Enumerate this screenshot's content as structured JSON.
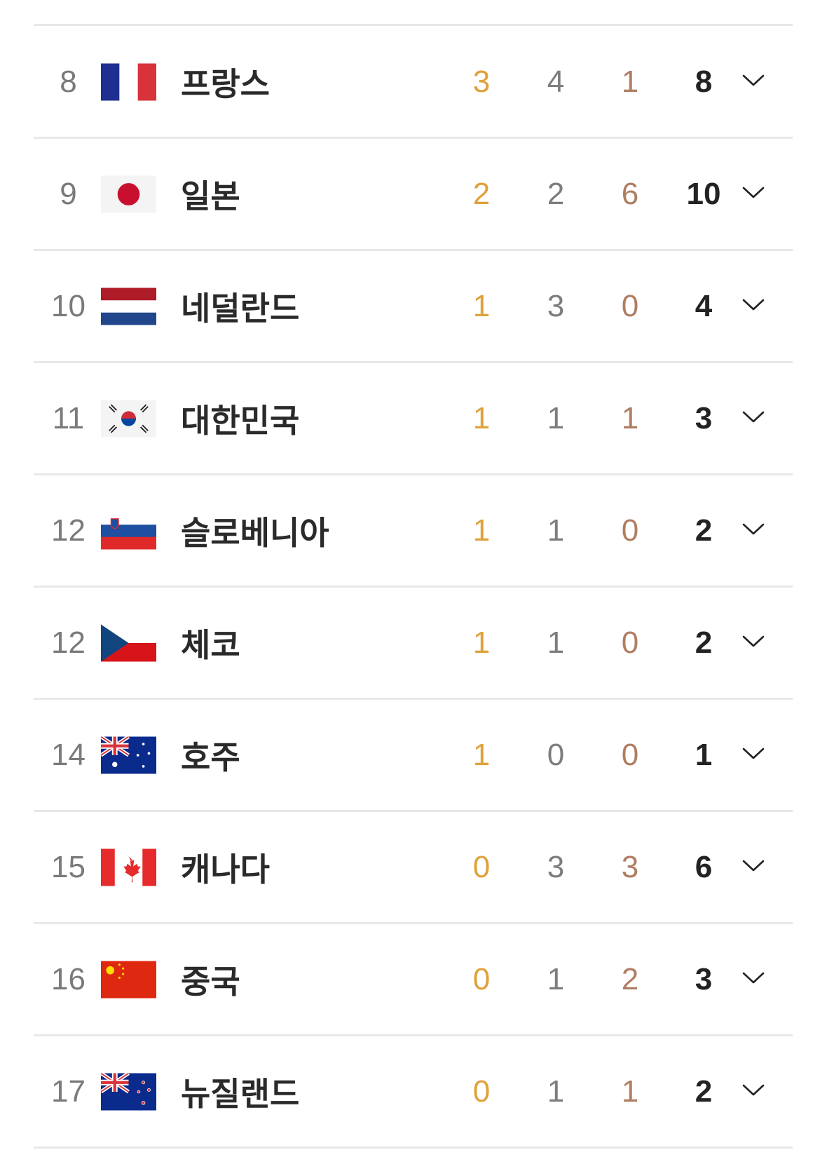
{
  "colors": {
    "gold": "#e0a13a",
    "silver": "#7d7d7d",
    "bronze": "#b07d62",
    "total": "#232323"
  },
  "rows": [
    {
      "rank": "8",
      "country": "프랑스",
      "flag": "france-flag",
      "gold": "3",
      "silver": "4",
      "bronze": "1",
      "total": "8"
    },
    {
      "rank": "9",
      "country": "일본",
      "flag": "japan-flag",
      "gold": "2",
      "silver": "2",
      "bronze": "6",
      "total": "10"
    },
    {
      "rank": "10",
      "country": "네덜란드",
      "flag": "netherlands-flag",
      "gold": "1",
      "silver": "3",
      "bronze": "0",
      "total": "4"
    },
    {
      "rank": "11",
      "country": "대한민국",
      "flag": "south-korea-flag",
      "gold": "1",
      "silver": "1",
      "bronze": "1",
      "total": "3"
    },
    {
      "rank": "12",
      "country": "슬로베니아",
      "flag": "slovenia-flag",
      "gold": "1",
      "silver": "1",
      "bronze": "0",
      "total": "2"
    },
    {
      "rank": "12",
      "country": "체코",
      "flag": "czechia-flag",
      "gold": "1",
      "silver": "1",
      "bronze": "0",
      "total": "2"
    },
    {
      "rank": "14",
      "country": "호주",
      "flag": "australia-flag",
      "gold": "1",
      "silver": "0",
      "bronze": "0",
      "total": "1"
    },
    {
      "rank": "15",
      "country": "캐나다",
      "flag": "canada-flag",
      "gold": "0",
      "silver": "3",
      "bronze": "3",
      "total": "6"
    },
    {
      "rank": "16",
      "country": "중국",
      "flag": "china-flag",
      "gold": "0",
      "silver": "1",
      "bronze": "2",
      "total": "3"
    },
    {
      "rank": "17",
      "country": "뉴질랜드",
      "flag": "new-zealand-flag",
      "gold": "0",
      "silver": "1",
      "bronze": "1",
      "total": "2"
    }
  ]
}
